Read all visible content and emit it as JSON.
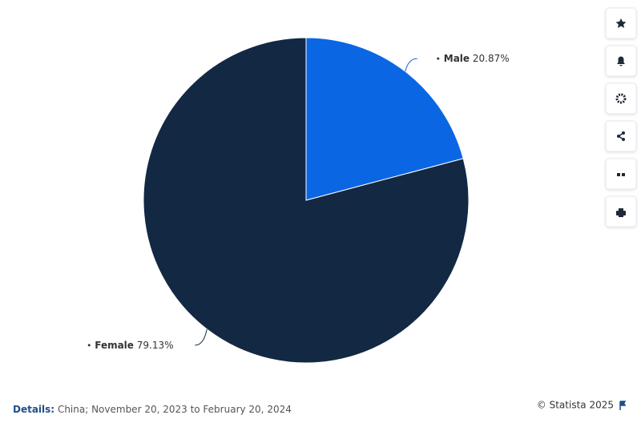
{
  "chart_data": {
    "type": "pie",
    "categories": [
      "Male",
      "Female"
    ],
    "values": [
      20.87,
      79.13
    ],
    "value_labels": [
      "20.87%",
      "79.13%"
    ],
    "colors": [
      "#0b66e4",
      "#132843"
    ]
  },
  "footer": {
    "details_label": "Details:",
    "details": "China; November 20, 2023 to February 20, 2024",
    "source": "© Statista 2025"
  }
}
